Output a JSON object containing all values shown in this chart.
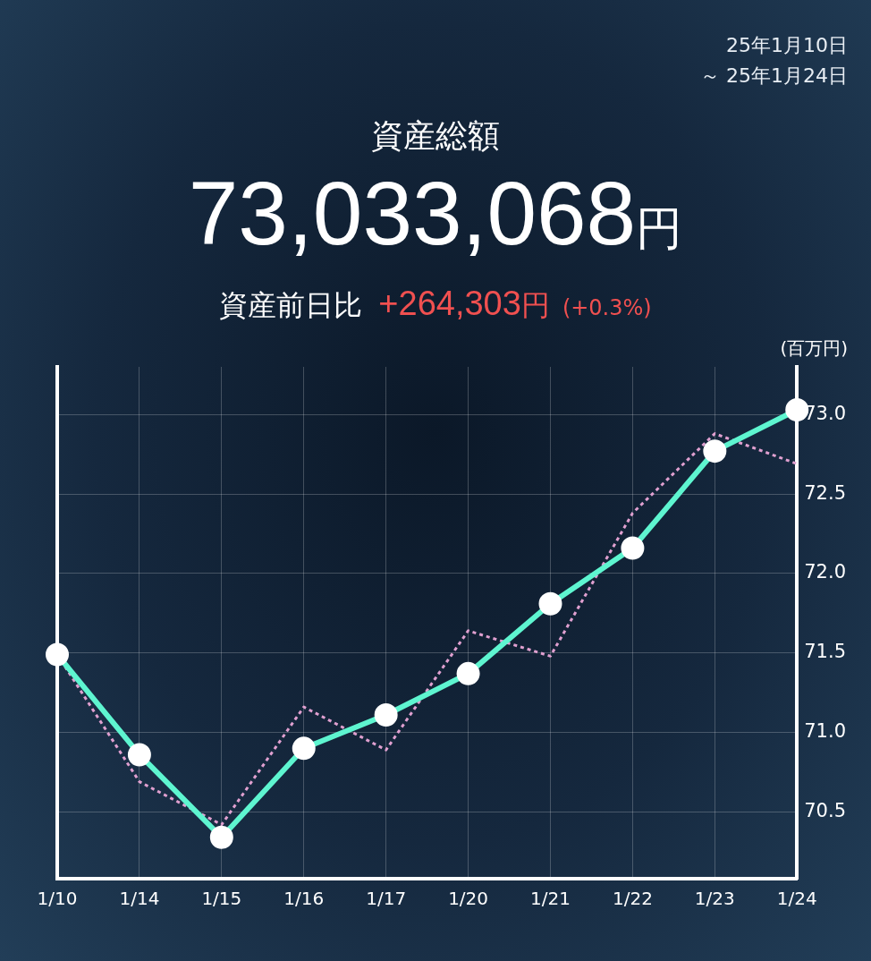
{
  "chart_data": {
    "type": "line",
    "title": "資産総額",
    "subtitle": "73,033,068円",
    "ylabel": "(百万円)",
    "annotations": [
      "25年1月10日",
      "～ 25年1月24日",
      "資産前日比",
      "+264,303円",
      "(+0.3%)"
    ],
    "categories": [
      "1/10",
      "1/14",
      "1/15",
      "1/16",
      "1/17",
      "1/20",
      "1/21",
      "1/22",
      "1/23",
      "1/24"
    ],
    "series": [
      {
        "color": "#5ef5d0",
        "marker": "circle",
        "line_style": "solid",
        "values": [
          71.49,
          70.86,
          70.34,
          70.9,
          71.11,
          71.37,
          71.81,
          72.16,
          72.77,
          73.03
        ]
      },
      {
        "color": "#e0a0d0",
        "marker": "none",
        "line_style": "dotted",
        "values": [
          71.49,
          70.69,
          70.42,
          71.16,
          70.89,
          71.64,
          71.48,
          72.38,
          72.88,
          72.69
        ]
      }
    ],
    "ylim": [
      70.08,
      73.3
    ],
    "yticks": [
      {
        "value": 70.5,
        "label": "70.5"
      },
      {
        "value": 71,
        "label": "71.0"
      },
      {
        "value": 71.5,
        "label": "71.5"
      },
      {
        "value": 72,
        "label": "72.0"
      },
      {
        "value": 72.5,
        "label": "72.5"
      },
      {
        "value": 73,
        "label": "73.0"
      }
    ],
    "grid": true,
    "legend": false
  }
}
